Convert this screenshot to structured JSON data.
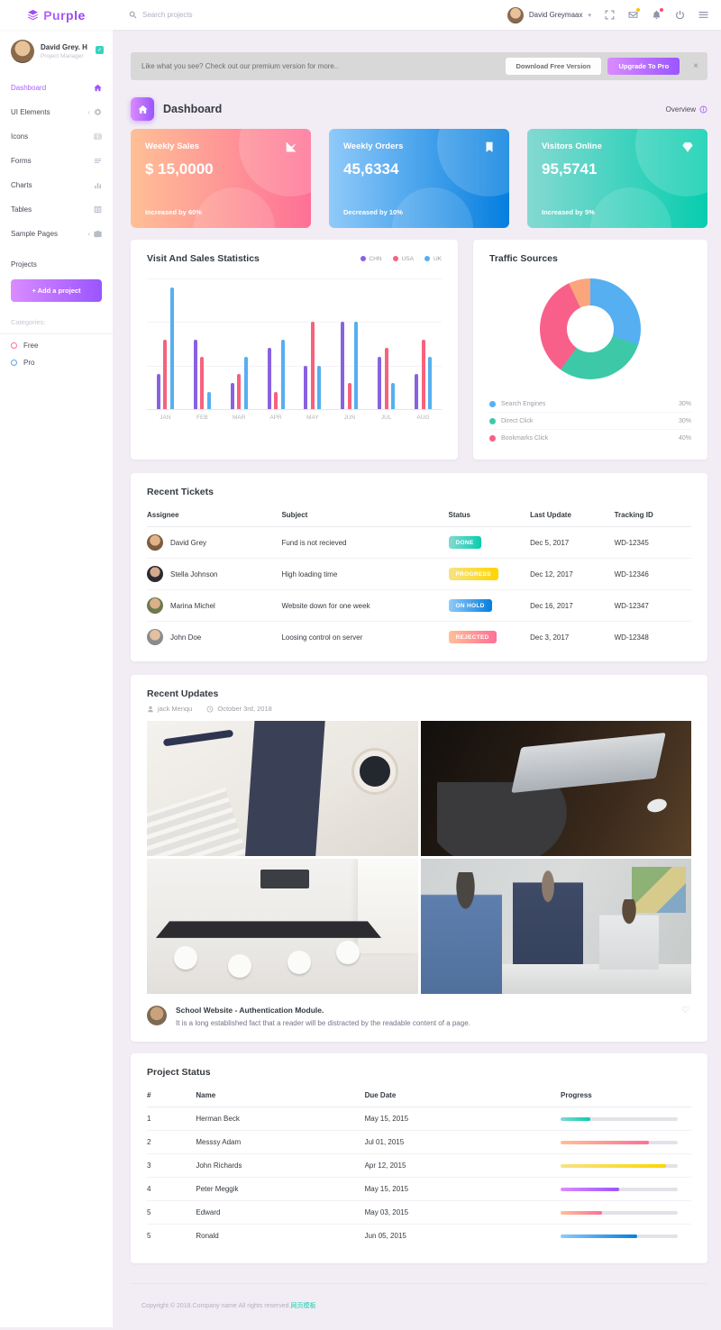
{
  "navbar": {
    "brand": "Purple",
    "search_placeholder": "Search projects",
    "user_name": "David Greymaax",
    "icons": [
      "expand-icon",
      "envelope-icon",
      "bell-icon",
      "power-icon",
      "list-toggle-icon"
    ]
  },
  "sidebar": {
    "profile": {
      "name": "David Grey. H",
      "role": "Project Manager"
    },
    "items": [
      {
        "label": "Dashboard",
        "icon": "home-icon",
        "active": true,
        "collapsible": false
      },
      {
        "label": "UI Elements",
        "icon": "gear-icon",
        "active": false,
        "collapsible": true
      },
      {
        "label": "Icons",
        "icon": "contact-card-icon",
        "active": false,
        "collapsible": false
      },
      {
        "label": "Forms",
        "icon": "list-lines-icon",
        "active": false,
        "collapsible": false
      },
      {
        "label": "Charts",
        "icon": "bar-chart-icon",
        "active": false,
        "collapsible": false
      },
      {
        "label": "Tables",
        "icon": "table-grid-icon",
        "active": false,
        "collapsible": false
      },
      {
        "label": "Sample Pages",
        "icon": "briefcase-icon",
        "active": false,
        "collapsible": true
      }
    ],
    "projects_heading": "Projects",
    "add_project_label": "+ Add a project",
    "categories_heading": "Categories:",
    "categories": [
      {
        "label": "Free",
        "color": "#fe7096"
      },
      {
        "label": "Pro",
        "color": "#58a5f0"
      }
    ]
  },
  "banner": {
    "text": "Like what you see? Check out our premium version for more..",
    "download_label": "Download Free Version",
    "upgrade_label": "Upgrade To Pro",
    "close_label": "×"
  },
  "page_header": {
    "title": "Dashboard",
    "overview_label": "Overview"
  },
  "stat_cards": [
    {
      "title": "Weekly Sales",
      "value": "$ 15,0000",
      "note": "Increased by 60%",
      "icon": "chart-line-icon",
      "gradient": "danger"
    },
    {
      "title": "Weekly Orders",
      "value": "45,6334",
      "note": "Decreased by 10%",
      "icon": "bookmark-icon",
      "gradient": "info"
    },
    {
      "title": "Visitors Online",
      "value": "95,5741",
      "note": "Increased by 5%",
      "icon": "diamond-icon",
      "gradient": "success"
    }
  ],
  "chart_data": [
    {
      "type": "bar",
      "title": "Visit And Sales Statistics",
      "categories": [
        "JAN",
        "FEB",
        "MAR",
        "APR",
        "MAY",
        "JUN",
        "JUL",
        "AUG"
      ],
      "series": [
        {
          "name": "CHN",
          "color": "#8862e0",
          "values": [
            20,
            40,
            15,
            35,
            25,
            50,
            30,
            20
          ]
        },
        {
          "name": "USA",
          "color": "#f7627c",
          "values": [
            40,
            30,
            20,
            10,
            50,
            15,
            35,
            40
          ]
        },
        {
          "name": "UK",
          "color": "#56aff0",
          "values": [
            70,
            10,
            30,
            40,
            25,
            50,
            15,
            30
          ]
        }
      ],
      "ylim": [
        0,
        75
      ],
      "grid": true,
      "legend_position": "top-right"
    },
    {
      "type": "pie",
      "title": "Traffic Sources",
      "labels": [
        "Search Engines",
        "Direct Click",
        "Bookmarks Click"
      ],
      "values": [
        30,
        30,
        40
      ],
      "colors": [
        "#56aff0",
        "#3dc9a8",
        "#f8608a"
      ],
      "tail_color": "#fba57d",
      "donut": true,
      "legend_position": "bottom"
    }
  ],
  "recent_tickets": {
    "title": "Recent Tickets",
    "columns": [
      "Assignee",
      "Subject",
      "Status",
      "Last Update",
      "Tracking ID"
    ],
    "rows": [
      {
        "assignee": "David Grey",
        "subject": "Fund is not recieved",
        "status": "DONE",
        "status_color": "success",
        "last_update": "Dec 5, 2017",
        "tracking_id": "WD-12345"
      },
      {
        "assignee": "Stella Johnson",
        "subject": "High loading time",
        "status": "PROGRESS",
        "status_color": "warning",
        "last_update": "Dec 12, 2017",
        "tracking_id": "WD-12346"
      },
      {
        "assignee": "Marina Michel",
        "subject": "Website down for one week",
        "status": "ON HOLD",
        "status_color": "info",
        "last_update": "Dec 16, 2017",
        "tracking_id": "WD-12347"
      },
      {
        "assignee": "John Doe",
        "subject": "Loosing control on server",
        "status": "REJECTED",
        "status_color": "danger",
        "last_update": "Dec 3, 2017",
        "tracking_id": "WD-12348"
      }
    ]
  },
  "recent_updates": {
    "title": "Recent Updates",
    "author": "jack Menqu",
    "date": "October 3rd, 2018",
    "photos": [
      "desk-flatlay-photo",
      "laptop-desk-photo",
      "meeting-room-photo",
      "team-meeting-photo"
    ],
    "post_title": "School Website - Authentication Module.",
    "post_text": "It is a long established fact that a reader will be distracted by the readable content of a page."
  },
  "project_status": {
    "title": "Project Status",
    "columns": [
      "#",
      "Name",
      "Due Date",
      "Progress"
    ],
    "rows": [
      {
        "num": "1",
        "name": "Herman Beck",
        "due": "May 15, 2015",
        "progress": 25,
        "color": "success"
      },
      {
        "num": "2",
        "name": "Messsy Adam",
        "due": "Jul 01, 2015",
        "progress": 75,
        "color": "danger"
      },
      {
        "num": "3",
        "name": "John Richards",
        "due": "Apr 12, 2015",
        "progress": 90,
        "color": "warning"
      },
      {
        "num": "4",
        "name": "Peter Meggik",
        "due": "May 15, 2015",
        "progress": 50,
        "color": "primary"
      },
      {
        "num": "5",
        "name": "Edward",
        "due": "May 03, 2015",
        "progress": 35,
        "color": "danger"
      },
      {
        "num": "5",
        "name": "Ronald",
        "due": "Jun 05, 2015",
        "progress": 65,
        "color": "info"
      }
    ]
  },
  "footer": {
    "copyright": "Copyright © 2018.Company name All rights reserved.",
    "link_text": "网页模板"
  }
}
